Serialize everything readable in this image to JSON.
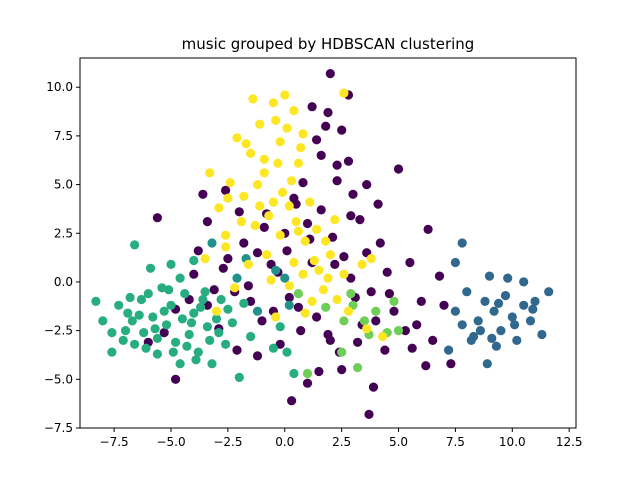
{
  "chart_data": {
    "type": "scatter",
    "title": "music grouped by HDBSCAN clustering",
    "xlabel": "",
    "ylabel": "",
    "xlim": [
      -9.0,
      12.8
    ],
    "ylim": [
      -7.5,
      11.5
    ],
    "xticks": [
      -7.5,
      -5.0,
      -2.5,
      0.0,
      2.5,
      5.0,
      7.5,
      10.0,
      12.5
    ],
    "xtick_labels": [
      "−7.5",
      "−5.0",
      "−2.5",
      "0.0",
      "2.5",
      "5.0",
      "7.5",
      "10.0",
      "12.5"
    ],
    "yticks": [
      -7.5,
      -5.0,
      -2.5,
      0.0,
      2.5,
      5.0,
      7.5,
      10.0
    ],
    "ytick_labels": [
      "−7.5",
      "−5.0",
      "−2.5",
      "0.0",
      "2.5",
      "5.0",
      "7.5",
      "10.0"
    ],
    "grid": false,
    "legend": "none",
    "series": [
      {
        "color": "#440154",
        "points": [
          [
            -2.5,
            1.2
          ],
          [
            -2.2,
            -0.5
          ],
          [
            -1.8,
            2.0
          ],
          [
            -1.5,
            -1.0
          ],
          [
            -1.2,
            1.5
          ],
          [
            -1.0,
            -2.0
          ],
          [
            -0.8,
            3.5
          ],
          [
            -0.5,
            -1.5
          ],
          [
            -0.3,
            0.5
          ],
          [
            0.0,
            2.5
          ],
          [
            0.2,
            -0.8
          ],
          [
            0.5,
            4.0
          ],
          [
            0.7,
            -2.5
          ],
          [
            1.0,
            3.0
          ],
          [
            1.2,
            1.0
          ],
          [
            1.4,
            -1.8
          ],
          [
            1.6,
            6.5
          ],
          [
            1.8,
            8.0
          ],
          [
            1.2,
            9.0
          ],
          [
            2.0,
            10.7
          ],
          [
            2.8,
            9.6
          ],
          [
            2.5,
            7.8
          ],
          [
            2.8,
            6.2
          ],
          [
            2.3,
            5.2
          ],
          [
            3.0,
            4.5
          ],
          [
            3.3,
            3.2
          ],
          [
            3.6,
            1.5
          ],
          [
            3.8,
            -0.5
          ],
          [
            4.0,
            -2.0
          ],
          [
            4.2,
            2.0
          ],
          [
            4.5,
            0.5
          ],
          [
            4.8,
            -1.5
          ],
          [
            5.0,
            5.8
          ],
          [
            5.3,
            -2.5
          ],
          [
            5.5,
            1.0
          ],
          [
            6.0,
            -1.0
          ],
          [
            6.3,
            2.7
          ],
          [
            6.5,
            -3.0
          ],
          [
            7.0,
            -1.2
          ],
          [
            7.3,
            -4.2
          ],
          [
            6.2,
            -4.3
          ],
          [
            5.6,
            -3.4
          ],
          [
            3.9,
            -5.4
          ],
          [
            3.7,
            -6.8
          ],
          [
            2.5,
            -4.5
          ],
          [
            2.0,
            -3.0
          ],
          [
            1.5,
            -4.6
          ],
          [
            1.0,
            -5.2
          ],
          [
            0.3,
            -6.1
          ],
          [
            -0.2,
            -3.2
          ],
          [
            -1.2,
            -3.8
          ],
          [
            -2.1,
            -3.5
          ],
          [
            -2.9,
            -2.4
          ],
          [
            -3.4,
            -1.2
          ],
          [
            -4.0,
            0.4
          ],
          [
            -4.8,
            -1.4
          ],
          [
            -5.3,
            -2.6
          ],
          [
            -6.0,
            -3.1
          ],
          [
            -5.6,
            3.3
          ],
          [
            -4.8,
            -5.0
          ],
          [
            -3.8,
            1.6
          ],
          [
            -3.4,
            3.1
          ],
          [
            -3.6,
            4.5
          ],
          [
            -2.6,
            4.7
          ],
          [
            -2.0,
            3.6
          ],
          [
            0.4,
            4.3
          ],
          [
            0.8,
            5.1
          ],
          [
            1.6,
            3.7
          ],
          [
            2.1,
            2.3
          ],
          [
            2.6,
            1.3
          ],
          [
            2.9,
            0.2
          ],
          [
            3.1,
            -0.8
          ],
          [
            3.4,
            -2.2
          ],
          [
            0.6,
            -1.3
          ],
          [
            -0.6,
            0.9
          ],
          [
            1.9,
            -2.7
          ],
          [
            2.4,
            -3.6
          ],
          [
            3.2,
            -3.1
          ],
          [
            4.4,
            -3.5
          ],
          [
            5.8,
            -2.2
          ],
          [
            6.8,
            0.3
          ],
          [
            4.1,
            4.0
          ],
          [
            3.6,
            5.0
          ],
          [
            1.4,
            7.3
          ],
          [
            1.9,
            8.7
          ],
          [
            2.3,
            6.0
          ],
          [
            2.9,
            3.4
          ],
          [
            -1.6,
            -0.2
          ],
          [
            -2.7,
            0.7
          ],
          [
            -3.1,
            -0.4
          ],
          [
            -4.2,
            -0.9
          ],
          [
            -0.9,
            2.8
          ],
          [
            0.1,
            1.6
          ],
          [
            1.1,
            2.2
          ],
          [
            2.2,
            0.9
          ],
          [
            4.6,
            -0.6
          ]
        ]
      },
      {
        "color": "#31688e",
        "points": [
          [
            7.5,
            -1.5
          ],
          [
            7.8,
            -2.2
          ],
          [
            8.0,
            -0.5
          ],
          [
            8.2,
            -3.0
          ],
          [
            8.5,
            -2.0
          ],
          [
            8.8,
            -1.0
          ],
          [
            9.0,
            0.3
          ],
          [
            9.2,
            -1.5
          ],
          [
            9.5,
            -2.5
          ],
          [
            9.7,
            -0.7
          ],
          [
            10.0,
            -1.8
          ],
          [
            10.2,
            -3.0
          ],
          [
            10.5,
            -1.2
          ],
          [
            10.8,
            -2.0
          ],
          [
            11.0,
            -1.0
          ],
          [
            11.3,
            -2.7
          ],
          [
            11.6,
            -0.5
          ],
          [
            9.8,
            0.2
          ],
          [
            10.5,
            0.0
          ],
          [
            7.8,
            2.0
          ],
          [
            7.5,
            1.0
          ],
          [
            8.3,
            -2.8
          ],
          [
            7.2,
            -3.5
          ],
          [
            9.3,
            -3.3
          ],
          [
            8.9,
            -4.2
          ],
          [
            9.1,
            -2.9
          ],
          [
            10.9,
            -1.4
          ],
          [
            10.1,
            -2.2
          ],
          [
            9.4,
            -1.1
          ],
          [
            8.6,
            -2.5
          ]
        ]
      },
      {
        "color": "#21918c",
        "points": [
          [
            -3.2,
            2.0
          ],
          [
            -1.2,
            -1.5
          ],
          [
            -0.4,
            0.6
          ],
          [
            0.2,
            -1.2
          ],
          [
            -2.1,
            0.2
          ],
          [
            0.0,
            0.2
          ],
          [
            -1.7,
            1.2
          ]
        ]
      },
      {
        "color": "#27ad81",
        "points": [
          [
            -8.3,
            -1.0
          ],
          [
            -8.0,
            -2.0
          ],
          [
            -7.6,
            -3.6
          ],
          [
            -7.3,
            -1.2
          ],
          [
            -7.0,
            -2.5
          ],
          [
            -6.8,
            -0.8
          ],
          [
            -6.6,
            -3.2
          ],
          [
            -6.4,
            -1.7
          ],
          [
            -6.2,
            -2.6
          ],
          [
            -6.0,
            -0.6
          ],
          [
            -5.8,
            -1.8
          ],
          [
            -5.6,
            -3.7
          ],
          [
            -5.4,
            -0.3
          ],
          [
            -5.2,
            -2.2
          ],
          [
            -5.0,
            -1.2
          ],
          [
            -4.8,
            -3.1
          ],
          [
            -4.6,
            -4.2
          ],
          [
            -4.4,
            -0.6
          ],
          [
            -4.2,
            -2.7
          ],
          [
            -4.0,
            -1.6
          ],
          [
            -3.8,
            -3.6
          ],
          [
            -3.6,
            -0.9
          ],
          [
            -3.4,
            -2.3
          ],
          [
            -3.2,
            -4.2
          ],
          [
            -3.0,
            -1.9
          ],
          [
            -2.8,
            -0.9
          ],
          [
            -2.6,
            -3.2
          ],
          [
            -2.3,
            -2.1
          ],
          [
            -2.0,
            -4.9
          ],
          [
            -1.8,
            -1.1
          ],
          [
            -6.6,
            1.9
          ],
          [
            -5.9,
            0.7
          ],
          [
            -4.6,
            0.2
          ],
          [
            -7.6,
            -2.6
          ],
          [
            -6.9,
            -1.6
          ],
          [
            -5.6,
            -2.9
          ],
          [
            -5.1,
            -0.4
          ],
          [
            -4.9,
            -3.6
          ],
          [
            -4.1,
            -2.1
          ],
          [
            -3.7,
            -1.3
          ],
          [
            -3.3,
            -3.0
          ],
          [
            -2.9,
            -2.6
          ],
          [
            -6.3,
            -0.9
          ],
          [
            -6.1,
            -3.4
          ],
          [
            -5.3,
            -1.5
          ],
          [
            -4.5,
            -1.9
          ],
          [
            -3.5,
            -0.5
          ],
          [
            -7.1,
            -3.0
          ],
          [
            -5.7,
            -2.4
          ],
          [
            -4.3,
            -3.3
          ],
          [
            -6.7,
            -2.0
          ],
          [
            -3.9,
            -4.0
          ],
          [
            -2.5,
            -1.4
          ],
          [
            -1.5,
            -2.8
          ],
          [
            -0.5,
            -3.4
          ],
          [
            0.1,
            -3.6
          ],
          [
            -0.2,
            -2.3
          ],
          [
            0.4,
            -4.7
          ],
          [
            -5.0,
            0.9
          ],
          [
            -4.0,
            1.1
          ]
        ]
      },
      {
        "color": "#6ece58",
        "points": [
          [
            1.0,
            -4.7
          ],
          [
            1.8,
            -1.3
          ],
          [
            2.5,
            -3.6
          ],
          [
            3.0,
            -1.2
          ],
          [
            3.5,
            -2.0
          ],
          [
            4.0,
            -1.5
          ],
          [
            4.5,
            -2.6
          ],
          [
            3.2,
            -4.4
          ],
          [
            2.9,
            -0.6
          ],
          [
            3.7,
            -2.7
          ],
          [
            4.8,
            -1.0
          ],
          [
            5.0,
            -2.5
          ],
          [
            0.6,
            -0.6
          ],
          [
            2.6,
            -2.0
          ]
        ]
      },
      {
        "color": "#fde725",
        "points": [
          [
            -3.3,
            5.6
          ],
          [
            -2.9,
            3.8
          ],
          [
            -2.6,
            2.4
          ],
          [
            -2.4,
            5.1
          ],
          [
            -2.1,
            7.4
          ],
          [
            -1.8,
            4.4
          ],
          [
            -1.5,
            6.6
          ],
          [
            -1.3,
            2.9
          ],
          [
            -1.1,
            8.1
          ],
          [
            -0.9,
            5.6
          ],
          [
            -0.7,
            3.4
          ],
          [
            -0.5,
            9.2
          ],
          [
            -0.3,
            6.1
          ],
          [
            -0.1,
            4.6
          ],
          [
            0.1,
            7.9
          ],
          [
            0.3,
            5.2
          ],
          [
            0.5,
            3.1
          ],
          [
            0.7,
            6.9
          ],
          [
            0.9,
            2.1
          ],
          [
            1.1,
            4.1
          ],
          [
            1.3,
            1.1
          ],
          [
            1.5,
            0.6
          ],
          [
            1.7,
            -0.4
          ],
          [
            2.0,
            1.4
          ],
          [
            2.3,
            -0.9
          ],
          [
            2.6,
            0.4
          ],
          [
            0.0,
            9.6
          ],
          [
            -1.4,
            9.4
          ],
          [
            -0.4,
            8.3
          ],
          [
            0.4,
            8.8
          ],
          [
            -0.8,
            1.4
          ],
          [
            -0.2,
            2.4
          ],
          [
            0.2,
            -0.2
          ],
          [
            -1.6,
            0.9
          ],
          [
            -2.2,
            -0.3
          ],
          [
            -2.6,
            1.8
          ],
          [
            0.8,
            0.4
          ],
          [
            1.2,
            -1.0
          ],
          [
            -0.6,
            0.1
          ],
          [
            -1.1,
            3.9
          ],
          [
            0.6,
            2.6
          ],
          [
            1.4,
            2.7
          ],
          [
            2.2,
            3.2
          ],
          [
            -3.5,
            1.2
          ],
          [
            -3.0,
            -1.5
          ],
          [
            -0.9,
            6.3
          ],
          [
            -0.2,
            7.2
          ],
          [
            0.6,
            6.1
          ],
          [
            -1.9,
            3.1
          ],
          [
            -1.2,
            5.0
          ],
          [
            0.2,
            3.9
          ],
          [
            -2.5,
            4.3
          ],
          [
            -1.7,
            7.1
          ],
          [
            0.8,
            7.6
          ],
          [
            2.6,
            9.7
          ],
          [
            3.4,
            0.9
          ],
          [
            3.8,
            1.2
          ],
          [
            1.8,
            2.1
          ],
          [
            -0.4,
            -1.8
          ],
          [
            0.9,
            -1.6
          ],
          [
            1.9,
            0.2
          ],
          [
            2.8,
            -1.5
          ],
          [
            3.6,
            -2.4
          ],
          [
            4.3,
            -2.8
          ],
          [
            -0.5,
            4.1
          ],
          [
            0.4,
            1.0
          ]
        ]
      }
    ]
  }
}
